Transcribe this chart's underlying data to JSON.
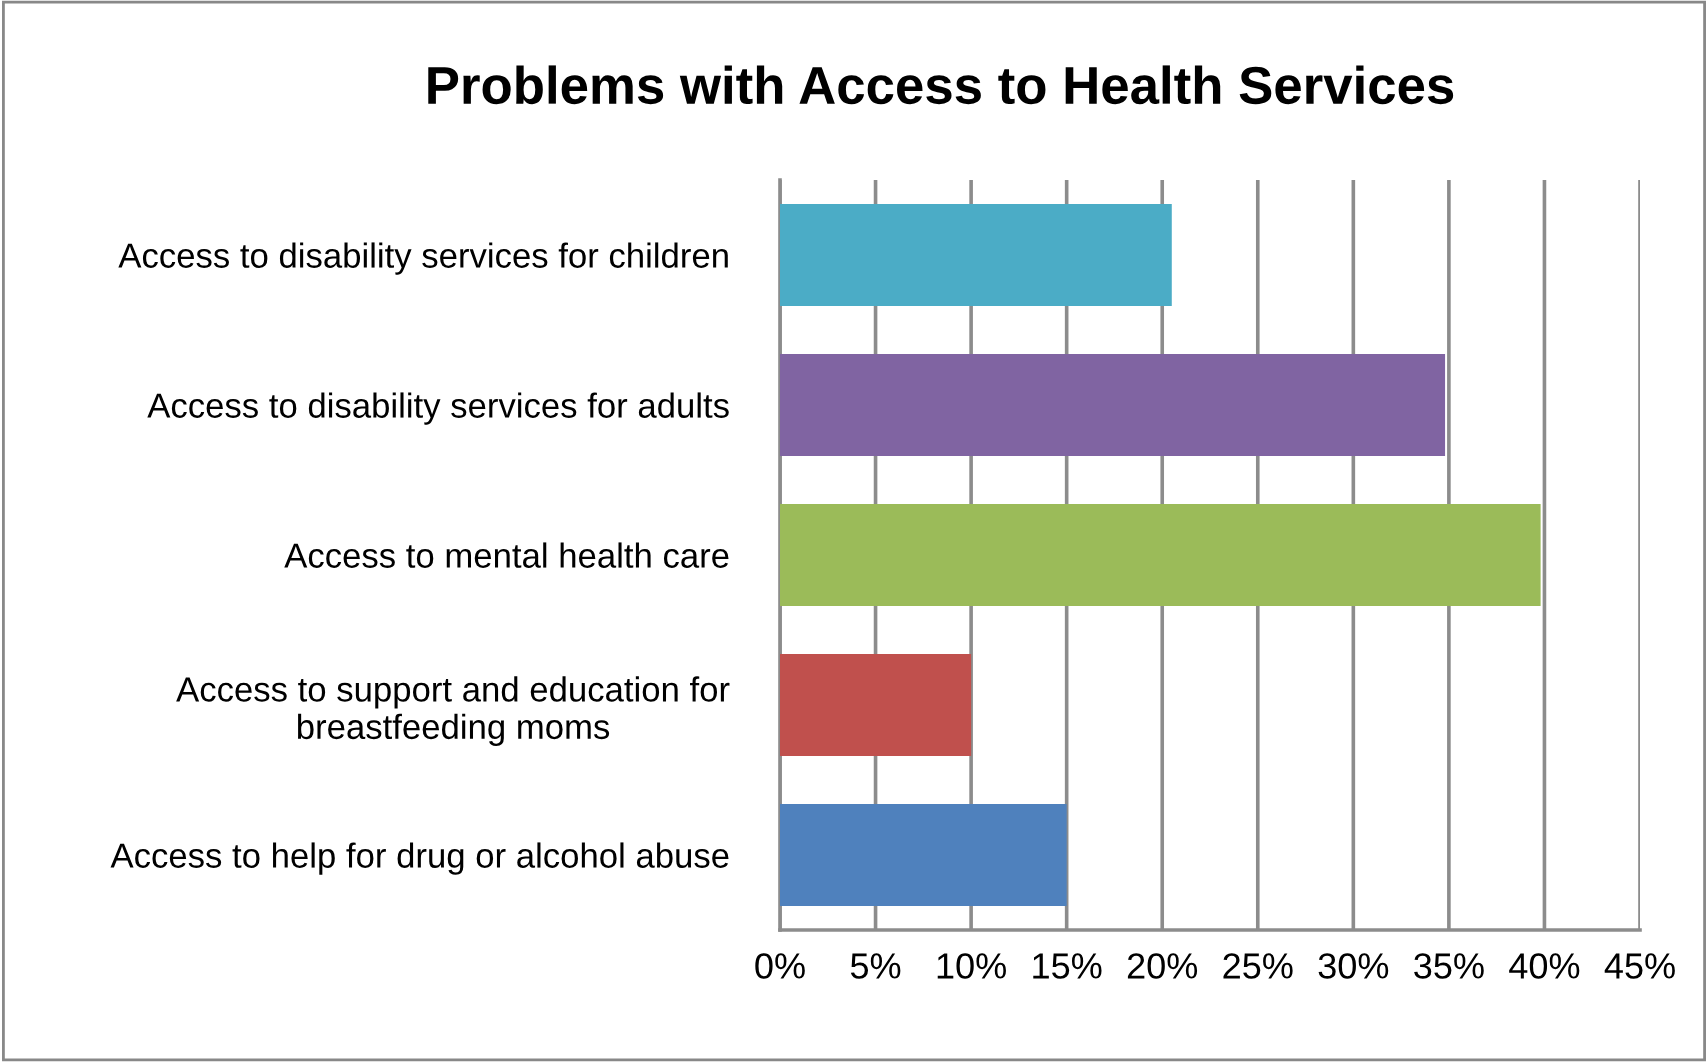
{
  "chart_data": {
    "type": "bar",
    "orientation": "horizontal",
    "title": "Problems with Access to Health Services",
    "categories": [
      "Access to disability services for children",
      "Access to disability services for adults",
      "Access to mental health care",
      "Access to support and education for\nbreastfeeding moms",
      "Access to help for drug or alcohol abuse"
    ],
    "values": [
      20.5,
      34.8,
      39.8,
      10,
      15
    ],
    "colors": [
      "#4bacc6",
      "#8064a2",
      "#9bbb59",
      "#c0504d",
      "#4f81bd"
    ],
    "xlim": [
      0,
      45
    ],
    "xticks": [
      {
        "value": 0,
        "label": "0%"
      },
      {
        "value": 5,
        "label": "5%"
      },
      {
        "value": 10,
        "label": "10%"
      },
      {
        "value": 15,
        "label": "15%"
      },
      {
        "value": 20,
        "label": "20%"
      },
      {
        "value": 25,
        "label": "25%"
      },
      {
        "value": 30,
        "label": "30%"
      },
      {
        "value": 35,
        "label": "35%"
      },
      {
        "value": 40,
        "label": "40%"
      },
      {
        "value": 45,
        "label": "45%"
      }
    ],
    "grid": "x",
    "legend": false
  }
}
